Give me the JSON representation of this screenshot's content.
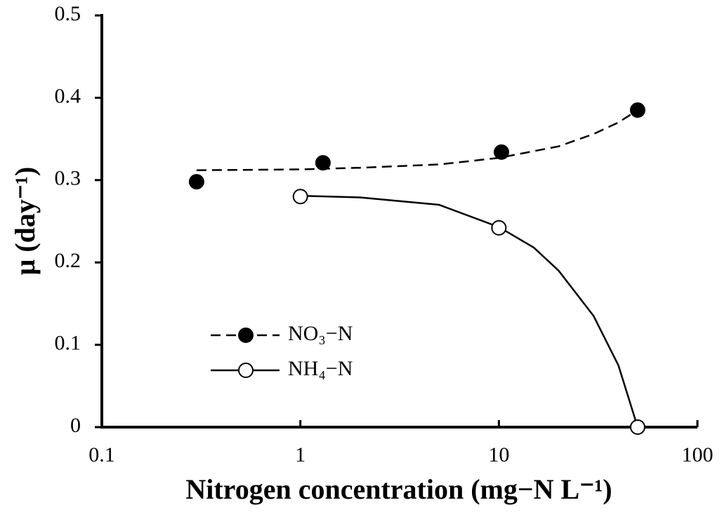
{
  "chart_data": {
    "type": "scatter",
    "x_label": "Nitrogen concentration (mg−N L⁻¹)",
    "y_label": "μ (day⁻¹)",
    "xlim": [
      0.1,
      100
    ],
    "xticks": [
      0.1,
      1,
      10,
      100
    ],
    "x_scale": "log",
    "ylim": [
      0,
      0.5
    ],
    "yticks": [
      0,
      0.1,
      0.2,
      0.3,
      0.4,
      0.5
    ],
    "legend": "left",
    "series": [
      {
        "name": "NO₃−N",
        "color": "#000000",
        "marker": "filled",
        "line": "dashed",
        "x": [
          0.3,
          1.3,
          10.3,
          50
        ],
        "values": [
          0.298,
          0.321,
          0.334,
          0.385
        ],
        "fit": {
          "x": [
            0.3,
            1,
            2,
            5,
            10,
            20,
            30,
            40,
            50
          ],
          "values": [
            0.312,
            0.313,
            0.315,
            0.319,
            0.327,
            0.341,
            0.356,
            0.37,
            0.385
          ]
        }
      },
      {
        "name": "NH₄−N",
        "color": "#000000",
        "marker": "open",
        "line": "solid",
        "x": [
          1,
          10,
          50
        ],
        "values": [
          0.28,
          0.242,
          0
        ],
        "fit": {
          "x": [
            1,
            2,
            5,
            10,
            15,
            20,
            30,
            40,
            50
          ],
          "values": [
            0.281,
            0.279,
            0.27,
            0.243,
            0.218,
            0.19,
            0.135,
            0.075,
            0
          ]
        }
      }
    ]
  }
}
